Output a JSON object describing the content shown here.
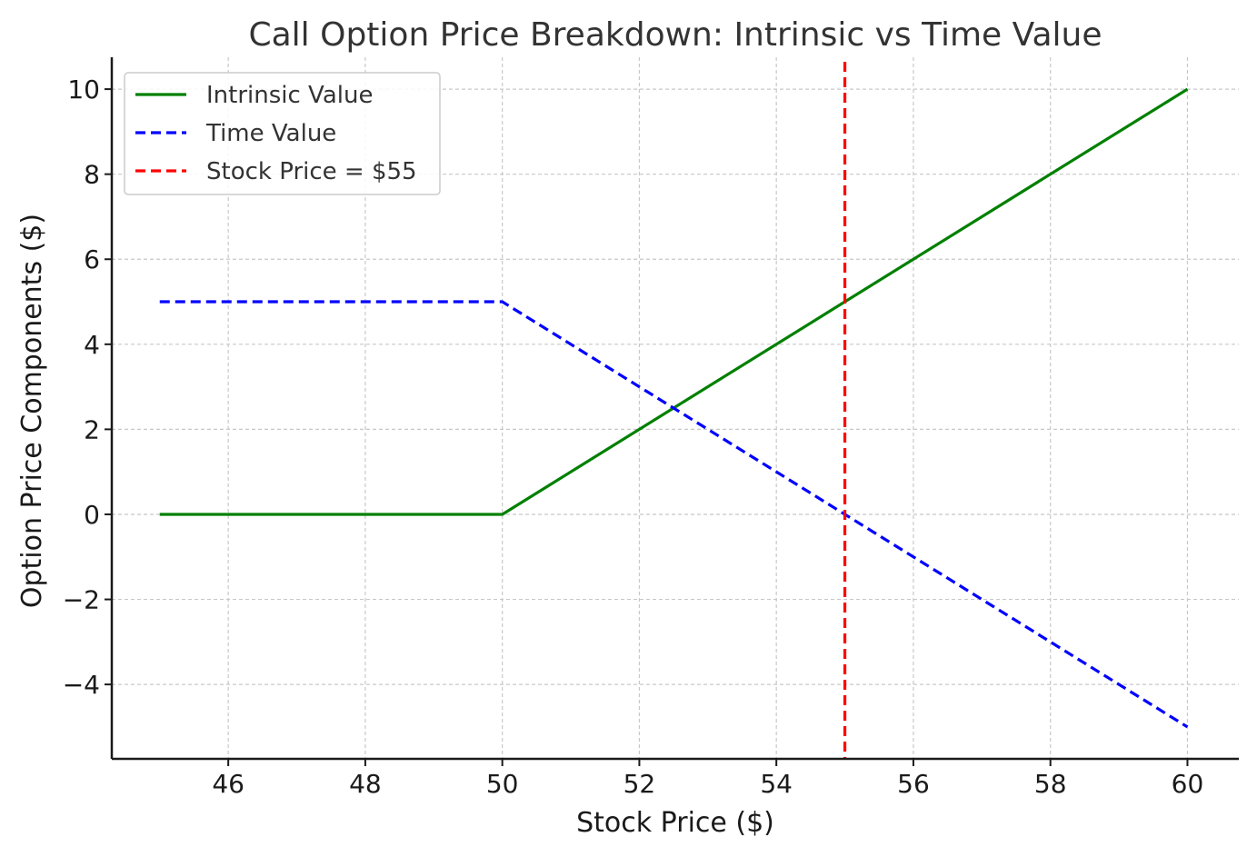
{
  "chart_data": {
    "type": "line",
    "title": "Call Option Price Breakdown: Intrinsic vs Time Value",
    "xlabel": "Stock Price ($)",
    "ylabel": "Option Price Components ($)",
    "xlim": [
      44.3,
      60.75
    ],
    "ylim": [
      -5.75,
      10.75
    ],
    "xticks": [
      46,
      48,
      50,
      52,
      54,
      56,
      58,
      60
    ],
    "xtick_labels": [
      "46",
      "48",
      "50",
      "52",
      "54",
      "56",
      "58",
      "60"
    ],
    "yticks": [
      -4,
      -2,
      0,
      2,
      4,
      6,
      8,
      10
    ],
    "ytick_labels": [
      "−4",
      "−2",
      "0",
      "2",
      "4",
      "6",
      "8",
      "10"
    ],
    "grid": true,
    "legend_position": "top-left",
    "series": [
      {
        "name": "Intrinsic Value",
        "color": "#008000",
        "style": "solid",
        "x": [
          45,
          50,
          55,
          60
        ],
        "y": [
          0,
          0,
          5,
          10
        ]
      },
      {
        "name": "Time Value",
        "color": "#0000ff",
        "style": "dashed",
        "x": [
          45,
          50,
          55,
          60
        ],
        "y": [
          5,
          5,
          0,
          -5
        ]
      }
    ],
    "vlines": [
      {
        "name": "Stock Price = $55",
        "x": 55,
        "color": "#ff0000",
        "style": "dashed"
      }
    ]
  }
}
